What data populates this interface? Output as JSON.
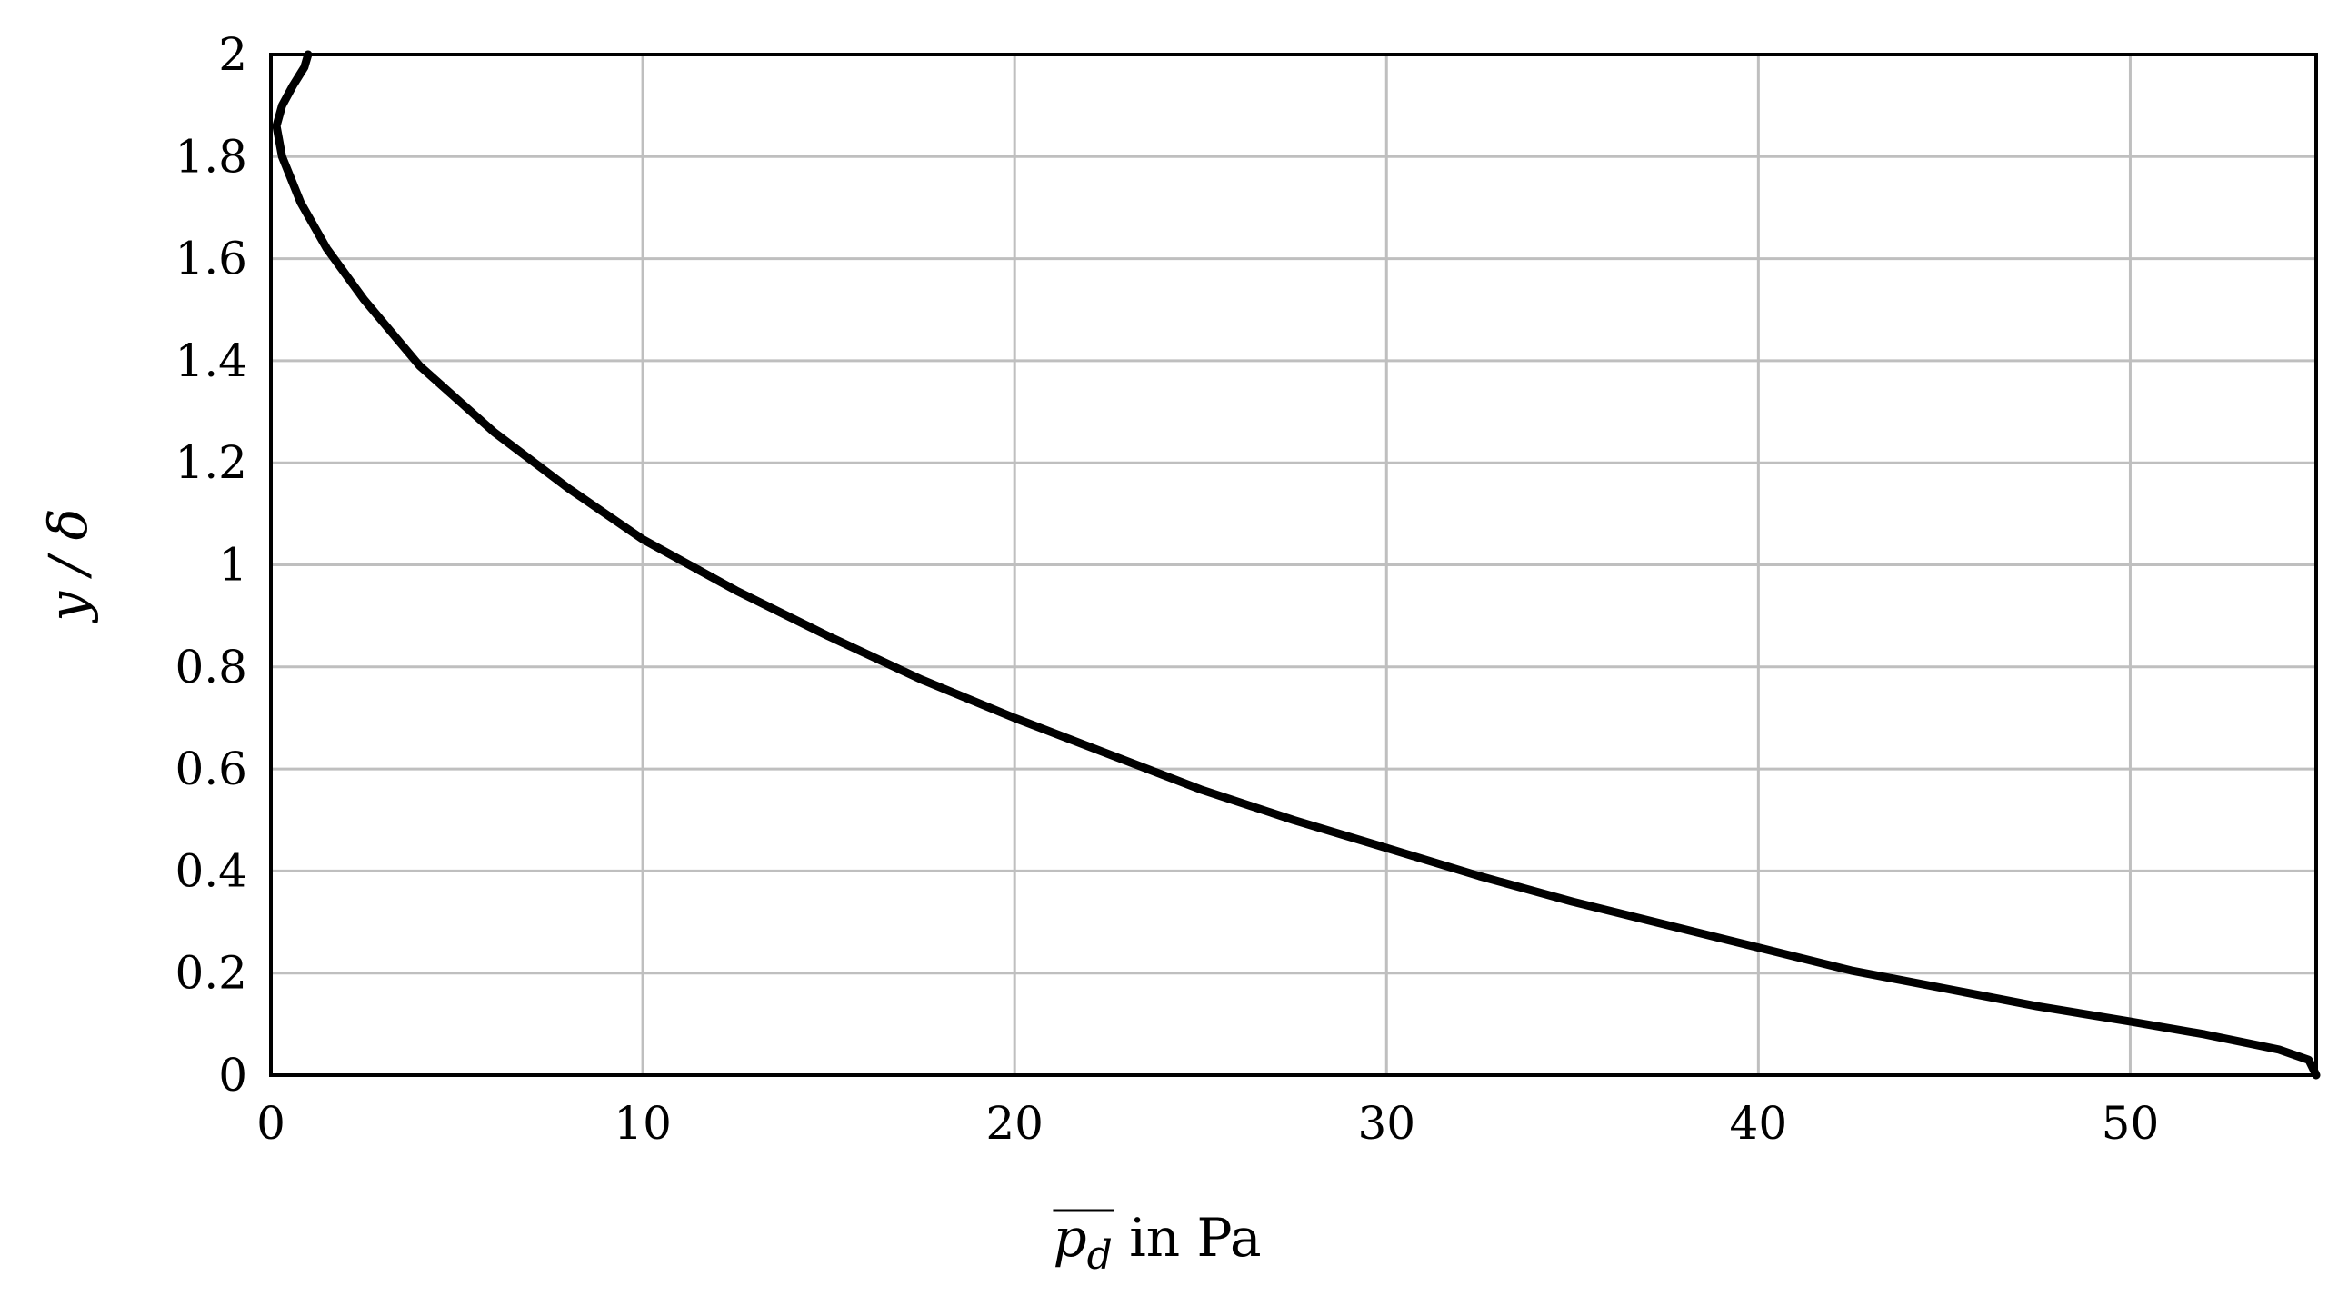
{
  "chart_data": {
    "type": "line",
    "title": "",
    "xlabel": {
      "base": "p",
      "subscript": "d",
      "overline": true,
      "suffix": " in Pa"
    },
    "ylabel": "y / δ",
    "xlim": [
      0,
      55
    ],
    "ylim": [
      0,
      2
    ],
    "grid": true,
    "legend": "none",
    "x_ticks": [
      "0",
      "10",
      "20",
      "30",
      "40",
      "50"
    ],
    "y_ticks": [
      "0",
      "0.2",
      "0.4",
      "0.6",
      "0.8",
      "1",
      "1.2",
      "1.4",
      "1.6",
      "1.8",
      "2"
    ],
    "series": [
      {
        "color": "#000000",
        "points": [
          [
            55.0,
            0.0
          ],
          [
            54.8,
            0.03
          ],
          [
            54.0,
            0.05
          ],
          [
            52.0,
            0.08
          ],
          [
            50.0,
            0.105
          ],
          [
            47.5,
            0.135
          ],
          [
            45.0,
            0.17
          ],
          [
            42.5,
            0.205
          ],
          [
            40.0,
            0.25
          ],
          [
            37.5,
            0.295
          ],
          [
            35.0,
            0.34
          ],
          [
            32.5,
            0.39
          ],
          [
            30.0,
            0.445
          ],
          [
            27.5,
            0.5
          ],
          [
            25.0,
            0.56
          ],
          [
            22.5,
            0.63
          ],
          [
            20.0,
            0.7
          ],
          [
            17.5,
            0.775
          ],
          [
            15.0,
            0.86
          ],
          [
            12.5,
            0.95
          ],
          [
            10.0,
            1.05
          ],
          [
            8.0,
            1.15
          ],
          [
            6.0,
            1.26
          ],
          [
            4.0,
            1.39
          ],
          [
            2.5,
            1.52
          ],
          [
            1.5,
            1.62
          ],
          [
            0.8,
            1.71
          ],
          [
            0.3,
            1.8
          ],
          [
            0.15,
            1.86
          ],
          [
            0.3,
            1.9
          ],
          [
            0.6,
            1.94
          ],
          [
            0.9,
            1.975
          ],
          [
            1.0,
            2.0
          ]
        ]
      }
    ]
  }
}
